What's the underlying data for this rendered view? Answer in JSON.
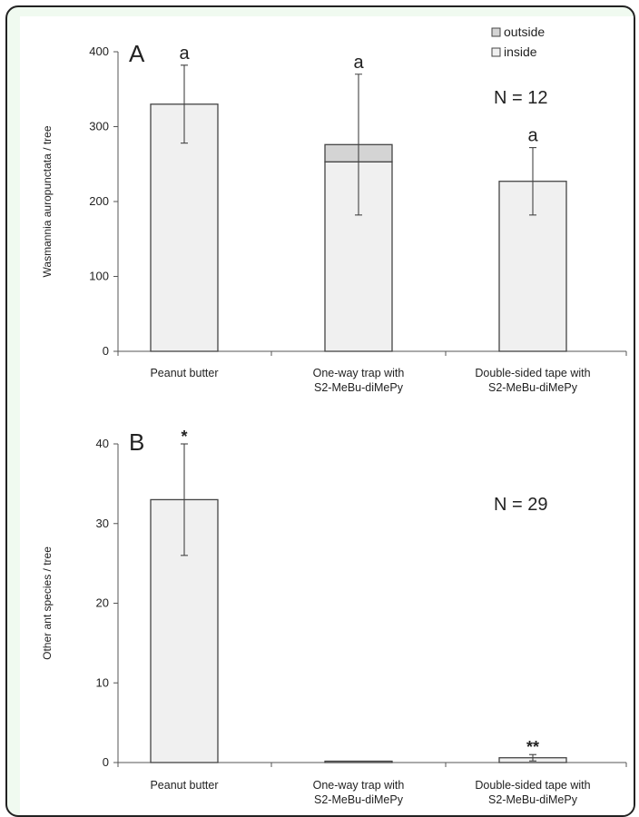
{
  "chart_data": [
    {
      "type": "bar",
      "panel_letter": "A",
      "ylabel": "Wasmannia auropunctata / tree",
      "ylim": [
        0,
        400
      ],
      "yticks": [
        0,
        100,
        200,
        300,
        400
      ],
      "categories": [
        [
          "Peanut butter"
        ],
        [
          "One-way trap with",
          "S2-MeBu-diMePy"
        ],
        [
          "Double-sided tape with",
          "S2-MeBu-diMePy"
        ]
      ],
      "series": [
        {
          "name": "inside",
          "values": [
            330,
            253,
            227
          ],
          "color": "#f0f0f0"
        },
        {
          "name": "outside",
          "values": [
            0,
            23,
            0
          ],
          "color": "#d4d4d4"
        }
      ],
      "error_bars": [
        {
          "low": 278,
          "high": 382
        },
        {
          "low": 182,
          "high": 370
        },
        {
          "low": 182,
          "high": 272
        }
      ],
      "significance": [
        "a",
        "a",
        "a"
      ],
      "annotation": "N = 12",
      "legend": {
        "position": "top-right",
        "entries": [
          "outside",
          "inside"
        ]
      }
    },
    {
      "type": "bar",
      "panel_letter": "B",
      "ylabel": "Other ant species / tree",
      "ylim": [
        0,
        40
      ],
      "yticks": [
        0,
        10,
        20,
        30,
        40
      ],
      "categories": [
        [
          "Peanut butter"
        ],
        [
          "One-way trap with",
          "S2-MeBu-diMePy"
        ],
        [
          "Double-sided tape with",
          "S2-MeBu-diMePy"
        ]
      ],
      "series": [
        {
          "values": [
            33,
            0.1,
            0.6
          ],
          "color": "#f0f0f0"
        }
      ],
      "error_bars": [
        {
          "low": 26,
          "high": 40
        },
        null,
        {
          "low": 0.2,
          "high": 1.0
        }
      ],
      "significance": [
        "*",
        "",
        "**"
      ],
      "annotation": "N = 29"
    }
  ]
}
